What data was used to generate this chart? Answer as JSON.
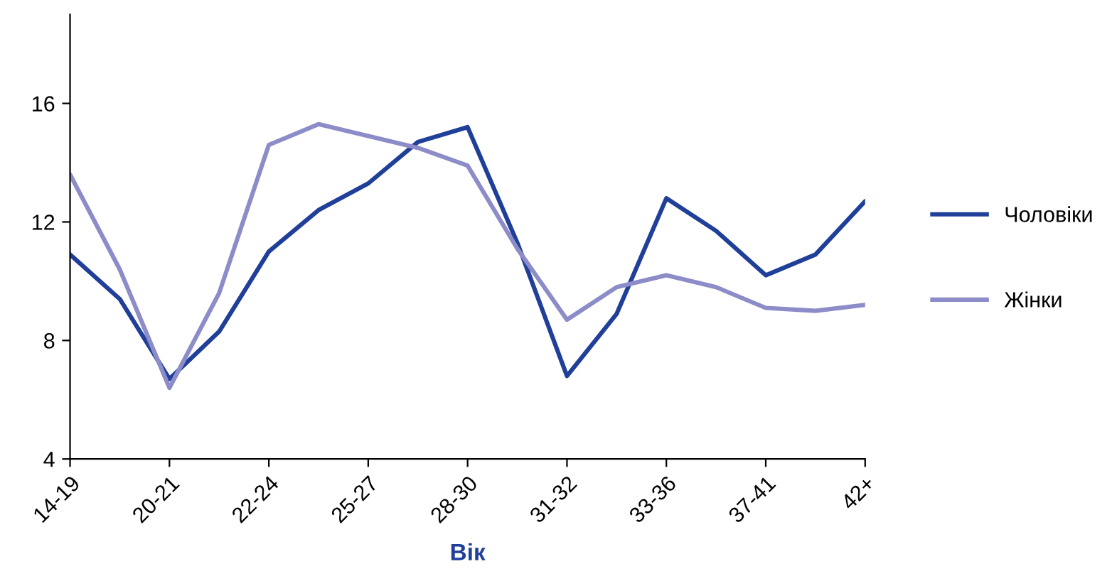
{
  "chart_data": {
    "type": "line",
    "xlabel": "Вік",
    "categories": [
      "14-19",
      null,
      "20-21",
      null,
      "22-24",
      null,
      "25-27",
      null,
      "28-30",
      null,
      "31-32",
      null,
      "33-36",
      null,
      "37-41",
      null,
      "42+"
    ],
    "series": [
      {
        "name": "Чоловіки",
        "color": "#1f3f99",
        "values": [
          10.9,
          9.4,
          6.7,
          8.3,
          11.0,
          12.4,
          13.3,
          14.7,
          15.2,
          11.3,
          6.8,
          8.9,
          12.8,
          11.7,
          10.2,
          10.9,
          12.7
        ]
      },
      {
        "name": "Жінки",
        "color": "#8c8cc8",
        "values": [
          13.6,
          10.4,
          6.4,
          9.6,
          14.6,
          15.3,
          14.9,
          14.5,
          13.9,
          11.1,
          8.7,
          9.8,
          10.2,
          9.8,
          9.1,
          9.0,
          9.2
        ]
      }
    ],
    "ylim": [
      4,
      19
    ],
    "yticks": [
      4,
      8,
      12,
      16
    ],
    "grid": false,
    "legend": "right",
    "marker": "none",
    "line_style": "solid"
  }
}
